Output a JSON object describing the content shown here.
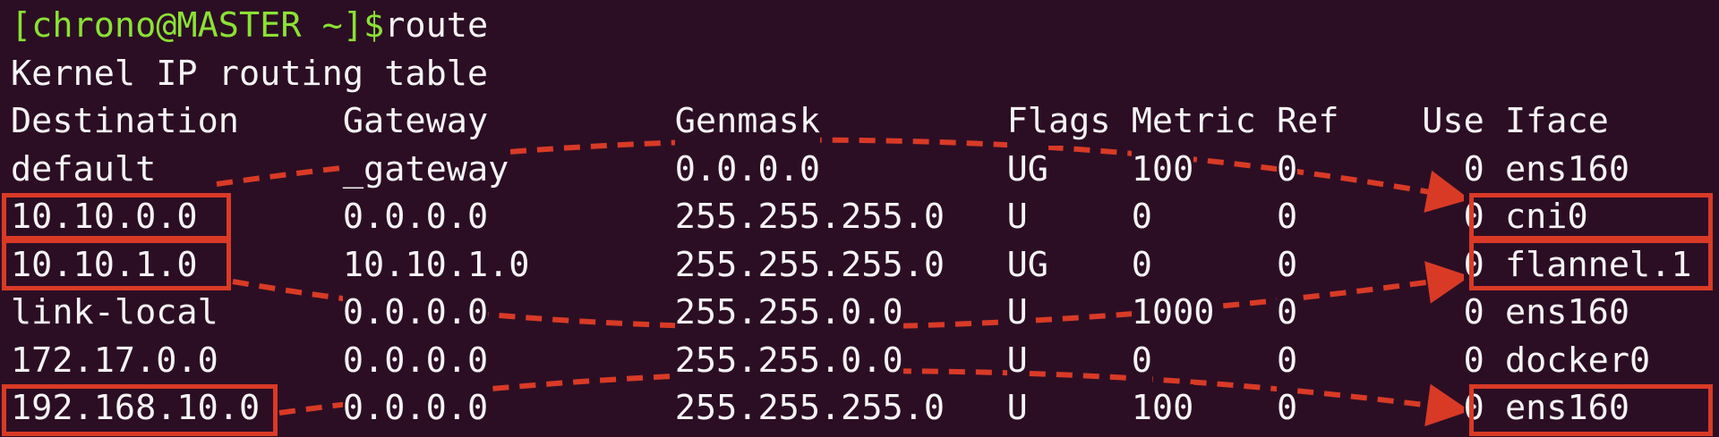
{
  "terminal": {
    "prompt": "[chrono@MASTER ~]$",
    "command": "route",
    "title_line": "Kernel IP routing table",
    "headers": [
      "Destination",
      "Gateway",
      "Genmask",
      "Flags",
      "Metric",
      "Ref",
      "Use",
      "Iface"
    ],
    "rows": [
      [
        "default",
        "_gateway",
        "0.0.0.0",
        "UG",
        "100",
        "0",
        "0",
        "ens160"
      ],
      [
        "10.10.0.0",
        "0.0.0.0",
        "255.255.255.0",
        "U",
        "0",
        "0",
        "0",
        "cni0"
      ],
      [
        "10.10.1.0",
        "10.10.1.0",
        "255.255.255.0",
        "UG",
        "0",
        "0",
        "0",
        "flannel.1"
      ],
      [
        "link-local",
        "0.0.0.0",
        "255.255.0.0",
        "U",
        "1000",
        "0",
        "0",
        "ens160"
      ],
      [
        "172.17.0.0",
        "0.0.0.0",
        "255.255.0.0",
        "U",
        "0",
        "0",
        "0",
        "docker0"
      ],
      [
        "192.168.10.0",
        "0.0.0.0",
        "255.255.255.0",
        "U",
        "100",
        "0",
        "0",
        "ens160"
      ]
    ]
  },
  "annotations": {
    "color": "#d93a26",
    "highlighted_destinations": [
      "10.10.0.0",
      "10.10.1.0",
      "192.168.10.0"
    ],
    "highlighted_ifaces": [
      "cni0",
      "flannel.1",
      "ens160"
    ],
    "arrows": [
      {
        "from": "default",
        "to": "cni0"
      },
      {
        "from": "10.10.1.0",
        "to": "flannel.1"
      },
      {
        "from": "192.168.10.0",
        "to": "ens160"
      }
    ]
  },
  "colors": {
    "background": "#2c0e24",
    "text": "#f4f4f4",
    "prompt": "#8ae234"
  }
}
